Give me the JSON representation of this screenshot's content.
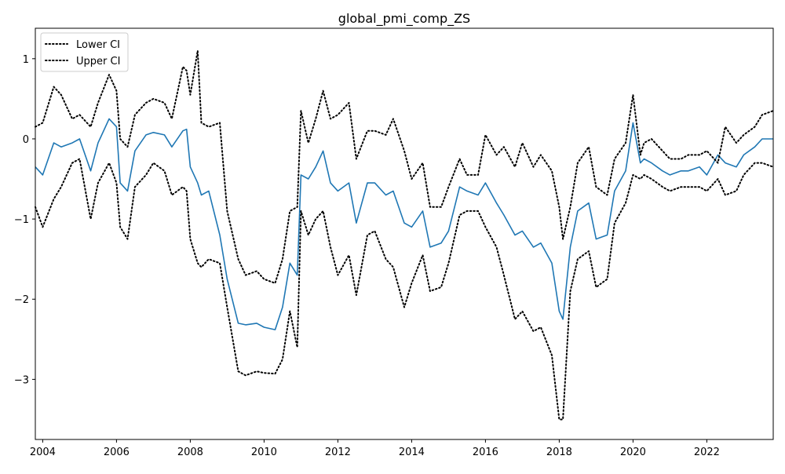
{
  "chart_data": {
    "type": "line",
    "title": "global_pmi_comp_ZS",
    "xlabel": "",
    "ylabel": "",
    "xlim": [
      2003.8,
      2023.8
    ],
    "ylim": [
      -3.75,
      1.38
    ],
    "x_ticks": [
      2004,
      2006,
      2008,
      2010,
      2012,
      2014,
      2016,
      2018,
      2020,
      2022
    ],
    "y_ticks": [
      1,
      0,
      -1,
      -2,
      -3
    ],
    "y_tick_labels": [
      "1",
      "0",
      "−1",
      "−2",
      "−3"
    ],
    "grid": false,
    "legend_position": "top-left",
    "legend": [
      "Lower CI",
      "Upper CI"
    ],
    "colors": {
      "main": "#1f77b4",
      "ci": "#000000"
    },
    "x": [
      2003.8,
      2004.0,
      2004.3,
      2004.5,
      2004.8,
      2005.0,
      2005.3,
      2005.5,
      2005.8,
      2006.0,
      2006.1,
      2006.3,
      2006.5,
      2006.8,
      2007.0,
      2007.3,
      2007.5,
      2007.8,
      2007.9,
      2008.0,
      2008.2,
      2008.3,
      2008.5,
      2008.8,
      2009.0,
      2009.3,
      2009.5,
      2009.8,
      2010.0,
      2010.3,
      2010.5,
      2010.7,
      2010.9,
      2011.0,
      2011.2,
      2011.4,
      2011.6,
      2011.8,
      2012.0,
      2012.3,
      2012.5,
      2012.8,
      2013.0,
      2013.3,
      2013.5,
      2013.8,
      2014.0,
      2014.3,
      2014.5,
      2014.8,
      2015.0,
      2015.3,
      2015.5,
      2015.8,
      2016.0,
      2016.3,
      2016.5,
      2016.8,
      2017.0,
      2017.3,
      2017.5,
      2017.8,
      2018.0,
      2018.1,
      2018.3,
      2018.5,
      2018.8,
      2019.0,
      2019.3,
      2019.5,
      2019.8,
      2020.0,
      2020.2,
      2020.3,
      2020.5,
      2020.8,
      2021.0,
      2021.3,
      2021.5,
      2021.8,
      2022.0,
      2022.3,
      2022.5,
      2022.8,
      2023.0,
      2023.3,
      2023.5,
      2023.8
    ],
    "series": [
      {
        "name": "",
        "style": "solid",
        "values": [
          -0.35,
          -0.45,
          -0.05,
          -0.1,
          -0.05,
          0.0,
          -0.4,
          -0.05,
          0.25,
          0.15,
          -0.55,
          -0.65,
          -0.15,
          0.05,
          0.08,
          0.05,
          -0.1,
          0.1,
          0.12,
          -0.35,
          -0.55,
          -0.7,
          -0.65,
          -1.2,
          -1.75,
          -2.3,
          -2.32,
          -2.3,
          -2.35,
          -2.38,
          -2.1,
          -1.55,
          -1.7,
          -0.45,
          -0.5,
          -0.35,
          -0.15,
          -0.55,
          -0.65,
          -0.55,
          -1.05,
          -0.55,
          -0.55,
          -0.7,
          -0.65,
          -1.05,
          -1.1,
          -0.9,
          -1.35,
          -1.3,
          -1.15,
          -0.6,
          -0.65,
          -0.7,
          -0.55,
          -0.8,
          -0.95,
          -1.2,
          -1.15,
          -1.35,
          -1.3,
          -1.55,
          -2.15,
          -2.25,
          -1.35,
          -0.9,
          -0.8,
          -1.25,
          -1.2,
          -0.65,
          -0.4,
          0.2,
          -0.3,
          -0.25,
          -0.3,
          -0.4,
          -0.45,
          -0.4,
          -0.4,
          -0.35,
          -0.45,
          -0.2,
          -0.3,
          -0.35,
          -0.2,
          -0.1,
          0.0,
          0.0
        ]
      },
      {
        "name": "Lower CI",
        "style": "dotted",
        "values": [
          -0.85,
          -1.1,
          -0.75,
          -0.6,
          -0.3,
          -0.25,
          -1.0,
          -0.55,
          -0.3,
          -0.55,
          -1.1,
          -1.25,
          -0.6,
          -0.45,
          -0.3,
          -0.4,
          -0.7,
          -0.6,
          -0.65,
          -1.25,
          -1.55,
          -1.6,
          -1.5,
          -1.55,
          -2.1,
          -2.9,
          -2.95,
          -2.9,
          -2.92,
          -2.93,
          -2.75,
          -2.15,
          -2.6,
          -0.9,
          -1.2,
          -1.0,
          -0.9,
          -1.35,
          -1.7,
          -1.45,
          -1.95,
          -1.2,
          -1.15,
          -1.5,
          -1.6,
          -2.1,
          -1.8,
          -1.45,
          -1.9,
          -1.85,
          -1.55,
          -0.95,
          -0.9,
          -0.9,
          -1.1,
          -1.35,
          -1.7,
          -2.25,
          -2.15,
          -2.4,
          -2.35,
          -2.7,
          -3.5,
          -3.5,
          -1.9,
          -1.5,
          -1.4,
          -1.85,
          -1.75,
          -1.05,
          -0.8,
          -0.45,
          -0.5,
          -0.45,
          -0.5,
          -0.6,
          -0.65,
          -0.6,
          -0.6,
          -0.6,
          -0.65,
          -0.5,
          -0.7,
          -0.65,
          -0.45,
          -0.3,
          -0.3,
          -0.35
        ]
      },
      {
        "name": "Upper CI",
        "style": "dotted",
        "values": [
          0.15,
          0.2,
          0.65,
          0.55,
          0.25,
          0.3,
          0.15,
          0.45,
          0.8,
          0.6,
          0.0,
          -0.1,
          0.3,
          0.45,
          0.5,
          0.45,
          0.25,
          0.9,
          0.85,
          0.55,
          1.1,
          0.2,
          0.15,
          0.2,
          -0.9,
          -1.5,
          -1.7,
          -1.65,
          -1.75,
          -1.8,
          -1.5,
          -0.9,
          -0.85,
          0.35,
          -0.05,
          0.25,
          0.6,
          0.25,
          0.3,
          0.45,
          -0.25,
          0.1,
          0.1,
          0.05,
          0.25,
          -0.15,
          -0.5,
          -0.3,
          -0.85,
          -0.85,
          -0.6,
          -0.25,
          -0.45,
          -0.45,
          0.05,
          -0.2,
          -0.1,
          -0.35,
          -0.05,
          -0.35,
          -0.2,
          -0.4,
          -0.85,
          -1.25,
          -0.85,
          -0.3,
          -0.1,
          -0.6,
          -0.7,
          -0.25,
          -0.05,
          0.55,
          -0.2,
          -0.05,
          0.0,
          -0.15,
          -0.25,
          -0.25,
          -0.2,
          -0.2,
          -0.15,
          -0.3,
          0.15,
          -0.05,
          0.05,
          0.15,
          0.3,
          0.35
        ]
      }
    ]
  }
}
